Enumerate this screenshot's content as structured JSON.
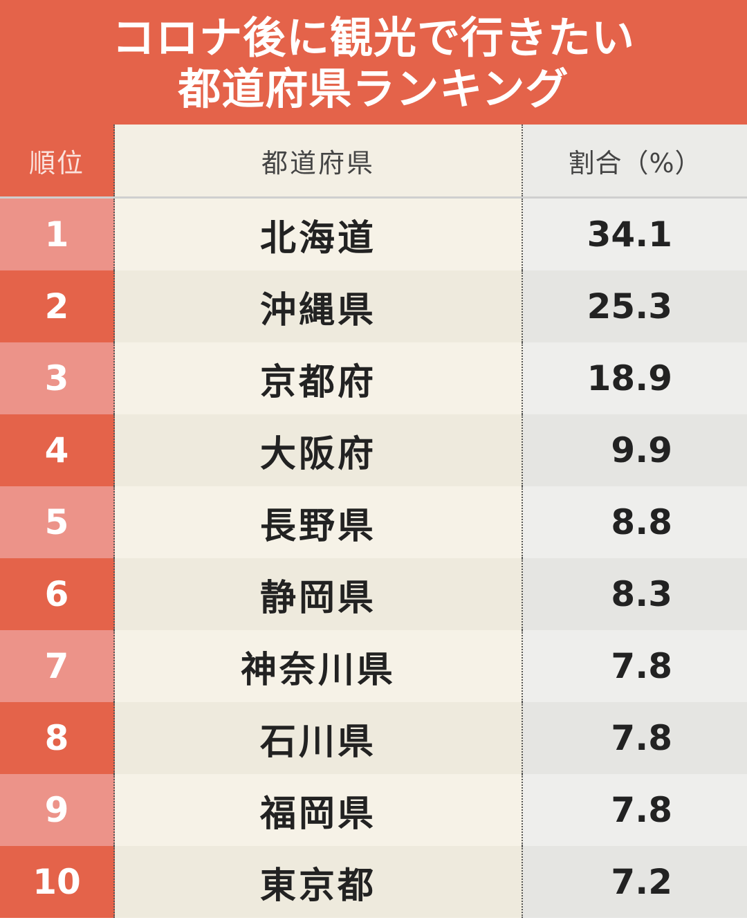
{
  "title": {
    "line1": "コロナ後に観光で行きたい",
    "line2": "都道府県ランキング"
  },
  "header": {
    "rank": "順位",
    "prefecture": "都道府県",
    "percent": "割合（%）"
  },
  "colors": {
    "accent": "#e4634a",
    "rank_light": "#ec9389",
    "pref_bg": "#f6f2e7",
    "pct_bg": "#eeeeec"
  },
  "chart_data": {
    "type": "table",
    "title": "コロナ後に観光で行きたい都道府県ランキング",
    "columns": [
      "順位",
      "都道府県",
      "割合（%）"
    ],
    "rows": [
      {
        "rank": "1",
        "prefecture": "北海道",
        "percent": "34.1"
      },
      {
        "rank": "2",
        "prefecture": "沖縄県",
        "percent": "25.3"
      },
      {
        "rank": "3",
        "prefecture": "京都府",
        "percent": "18.9"
      },
      {
        "rank": "4",
        "prefecture": "大阪府",
        "percent": "9.9"
      },
      {
        "rank": "5",
        "prefecture": "長野県",
        "percent": "8.8"
      },
      {
        "rank": "6",
        "prefecture": "静岡県",
        "percent": "8.3"
      },
      {
        "rank": "7",
        "prefecture": "神奈川県",
        "percent": "7.8"
      },
      {
        "rank": "8",
        "prefecture": "石川県",
        "percent": "7.8"
      },
      {
        "rank": "9",
        "prefecture": "福岡県",
        "percent": "7.8"
      },
      {
        "rank": "10",
        "prefecture": "東京都",
        "percent": "7.2"
      }
    ]
  }
}
